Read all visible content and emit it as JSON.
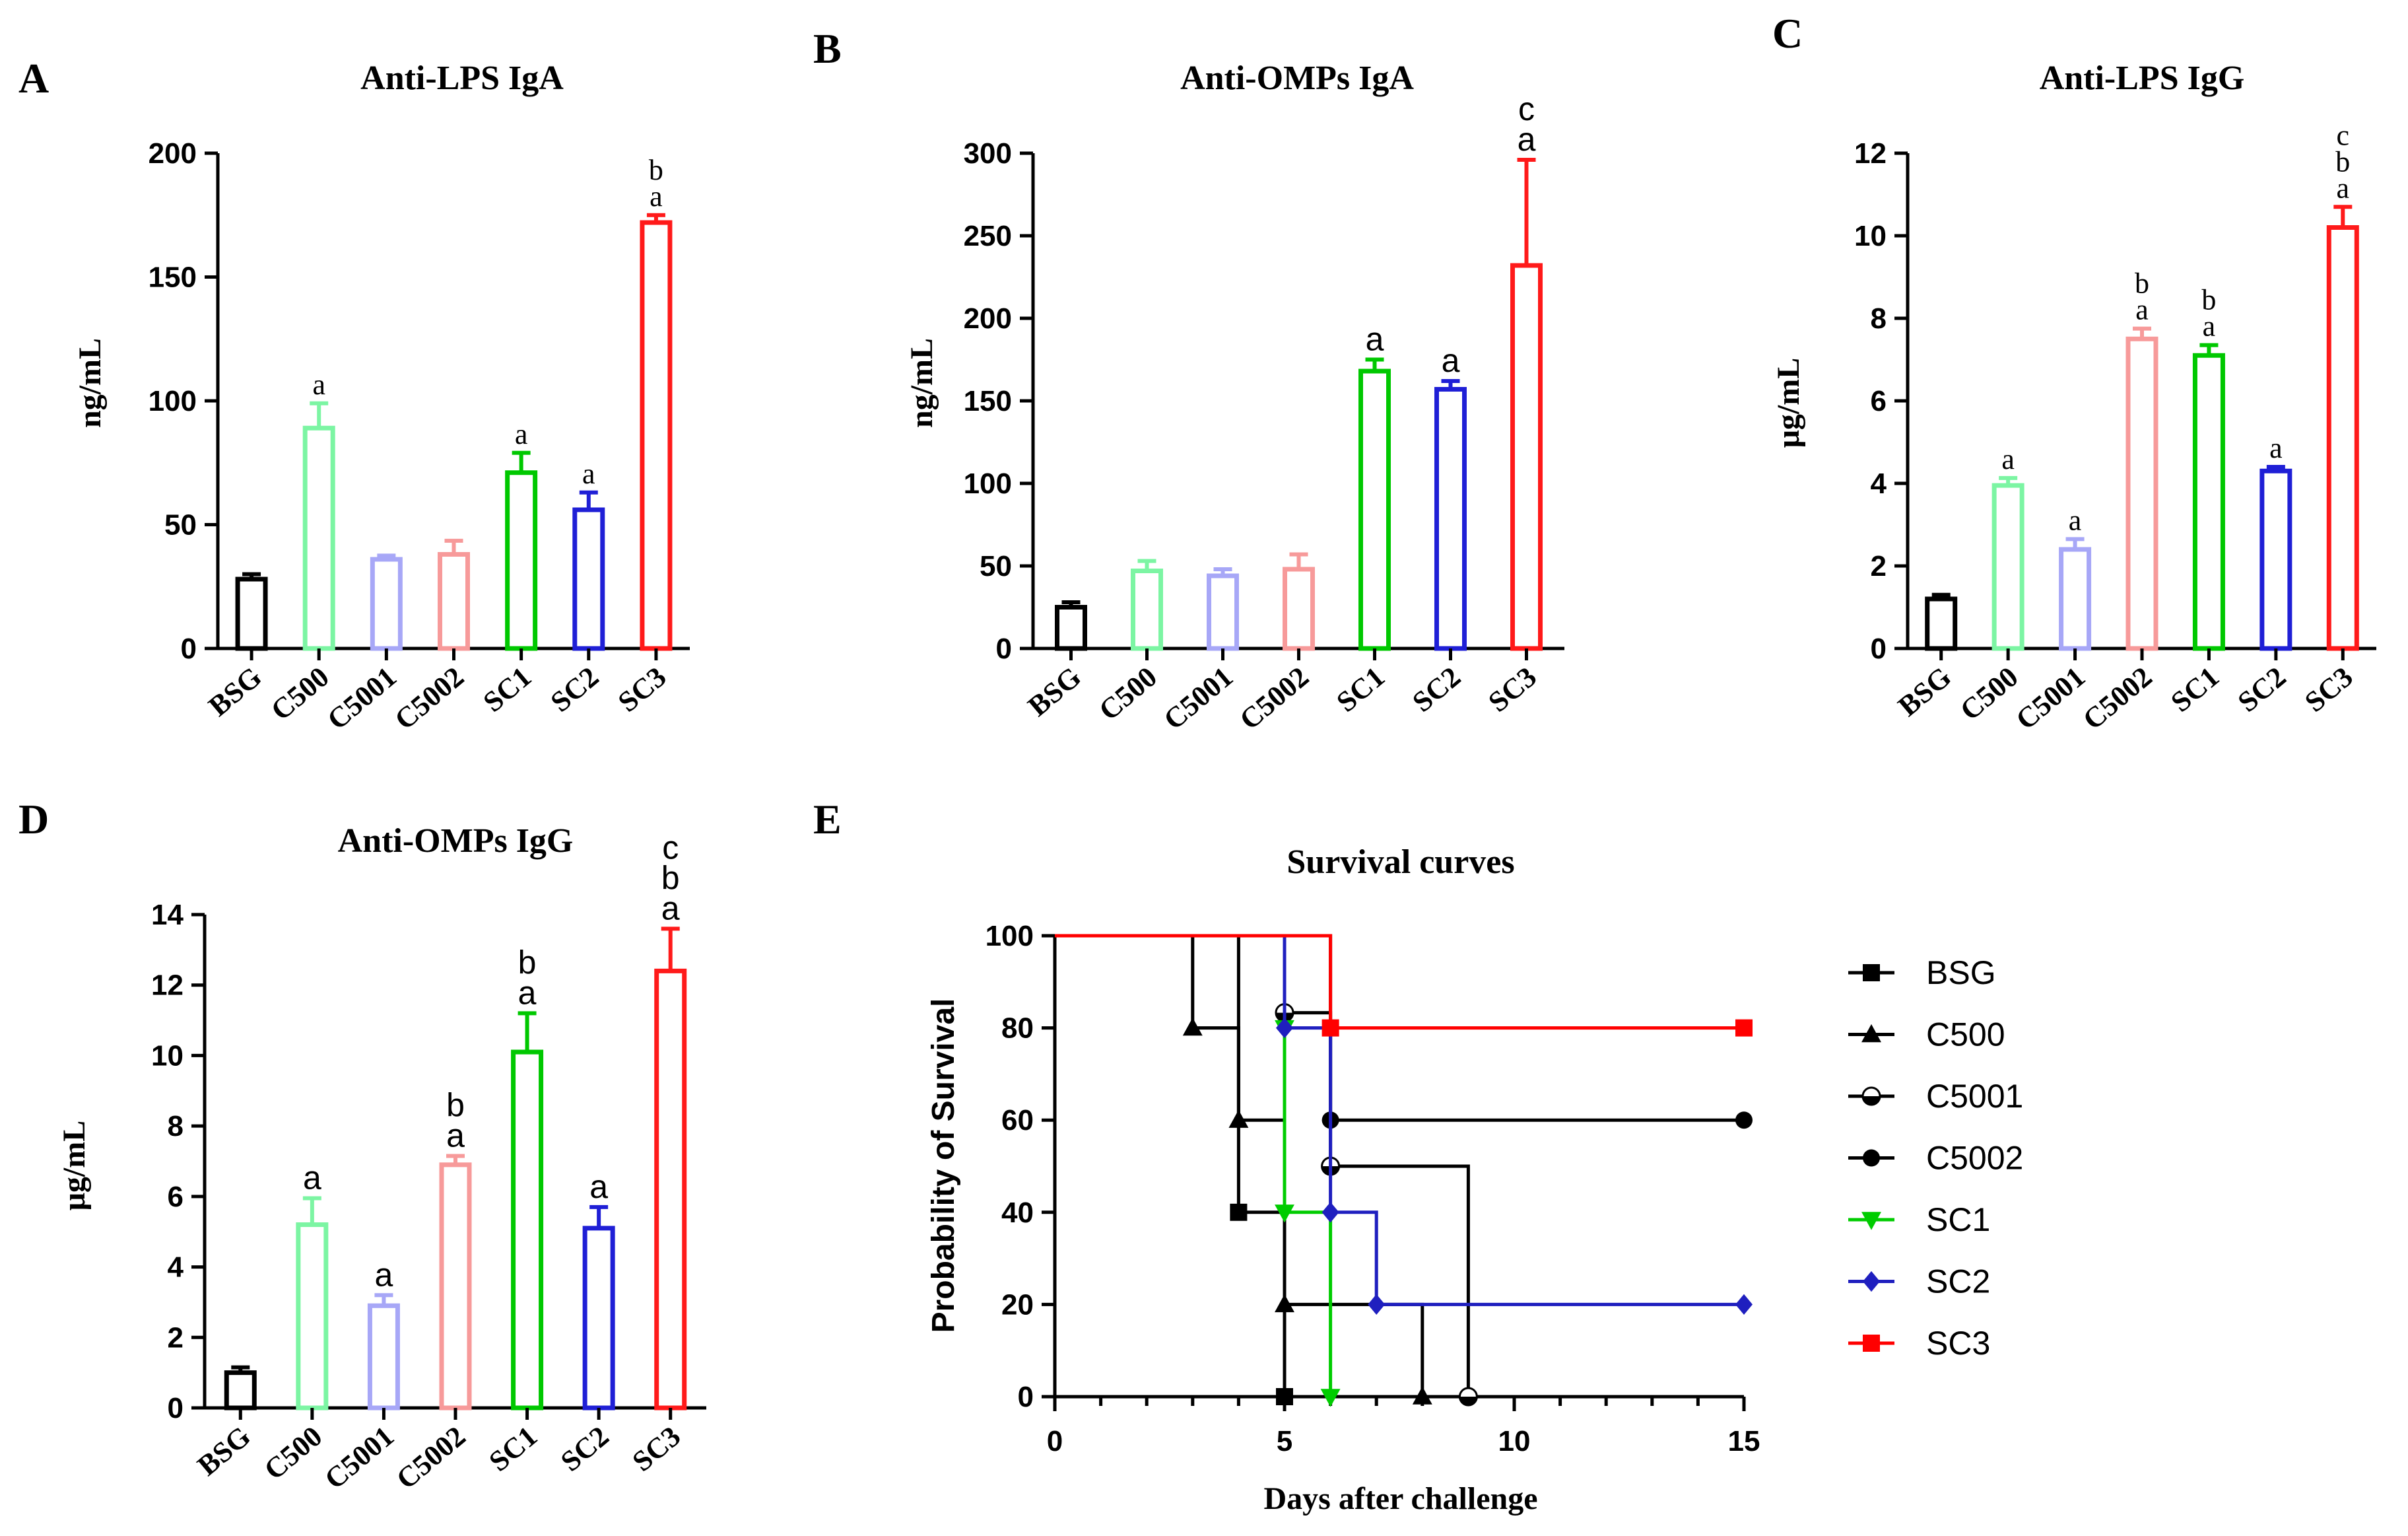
{
  "chart_data": [
    {
      "panel": "A",
      "type": "bar",
      "title": "Anti-LPS IgA",
      "ylabel": "ng/mL",
      "xlabel": "",
      "ylim": [
        0,
        200
      ],
      "yticks": [
        0,
        50,
        100,
        150,
        200
      ],
      "categories": [
        "BSG",
        "C500",
        "C5001",
        "C5002",
        "SC1",
        "SC2",
        "SC3"
      ],
      "values": [
        28,
        89,
        36,
        38,
        71,
        56,
        172
      ],
      "errors": [
        2,
        10,
        1.5,
        5.5,
        8,
        7,
        3
      ],
      "significance": [
        [],
        [
          "a"
        ],
        [],
        [],
        [
          "a"
        ],
        [
          "a"
        ],
        [
          "a",
          "b"
        ]
      ],
      "sig_font": "serif"
    },
    {
      "panel": "B",
      "type": "bar",
      "title": "Anti-OMPs IgA",
      "ylabel": "ng/mL",
      "xlabel": "",
      "ylim": [
        0,
        300
      ],
      "yticks": [
        0,
        50,
        100,
        150,
        200,
        250,
        300
      ],
      "categories": [
        "BSG",
        "C500",
        "C5001",
        "C5002",
        "SC1",
        "SC2",
        "SC3"
      ],
      "values": [
        25,
        47,
        44,
        48,
        168,
        157,
        232
      ],
      "errors": [
        3,
        6,
        4,
        9,
        7,
        5,
        64
      ],
      "significance": [
        [],
        [],
        [],
        [],
        [
          "a"
        ],
        [
          "a"
        ],
        [
          "a",
          "c"
        ]
      ],
      "sig_font": "sans"
    },
    {
      "panel": "C",
      "type": "bar",
      "title": "Anti-LPS IgG",
      "ylabel": "μg/mL",
      "xlabel": "",
      "ylim": [
        0,
        12
      ],
      "yticks": [
        0,
        2,
        4,
        6,
        8,
        10,
        12
      ],
      "categories": [
        "BSG",
        "C500",
        "C5001",
        "C5002",
        "SC1",
        "SC2",
        "SC3"
      ],
      "values": [
        1.2,
        3.95,
        2.4,
        7.5,
        7.1,
        4.3,
        10.2
      ],
      "errors": [
        0.1,
        0.18,
        0.25,
        0.25,
        0.25,
        0.1,
        0.5
      ],
      "significance": [
        [],
        [
          "a"
        ],
        [
          "a"
        ],
        [
          "a",
          "b"
        ],
        [
          "a",
          "b"
        ],
        [
          "a"
        ],
        [
          "a",
          "b",
          "c"
        ]
      ],
      "sig_font": "serif"
    },
    {
      "panel": "D",
      "type": "bar",
      "title": "Anti-OMPs IgG",
      "ylabel": "μg/mL",
      "xlabel": "",
      "ylim": [
        0,
        14
      ],
      "yticks": [
        0,
        2,
        4,
        6,
        8,
        10,
        12,
        14
      ],
      "categories": [
        "BSG",
        "C500",
        "C5001",
        "C5002",
        "SC1",
        "SC2",
        "SC3"
      ],
      "values": [
        1.0,
        5.2,
        2.9,
        6.9,
        10.1,
        5.1,
        12.4
      ],
      "errors": [
        0.15,
        0.75,
        0.3,
        0.25,
        1.1,
        0.6,
        1.2
      ],
      "significance": [
        [],
        [
          "a"
        ],
        [
          "a"
        ],
        [
          "a",
          "b"
        ],
        [
          "a",
          "b"
        ],
        [
          "a"
        ],
        [
          "a",
          "b",
          "c"
        ]
      ],
      "sig_font": "sans"
    },
    {
      "panel": "E",
      "type": "line",
      "title": "Survival curves",
      "xlabel": "Days after challenge",
      "ylabel": "Probability of Survival",
      "xlim": [
        0,
        15
      ],
      "ylim": [
        0,
        100
      ],
      "xticks": [
        0,
        5,
        10,
        15
      ],
      "yticks": [
        0,
        20,
        40,
        60,
        80,
        100
      ],
      "series": [
        {
          "name": "BSG",
          "marker": "square",
          "color": "#000000",
          "steps": [
            [
              0,
              100
            ],
            [
              4,
              40
            ],
            [
              5,
              0
            ]
          ],
          "markers": [
            [
              4,
              40
            ],
            [
              5,
              0
            ]
          ]
        },
        {
          "name": "C500",
          "marker": "triangle-up",
          "color": "#000000",
          "steps": [
            [
              0,
              100
            ],
            [
              3,
              80
            ],
            [
              4,
              60
            ],
            [
              5,
              20
            ],
            [
              8,
              0
            ]
          ],
          "markers": [
            [
              3,
              80
            ],
            [
              4,
              60
            ],
            [
              5,
              20
            ],
            [
              8,
              0
            ]
          ]
        },
        {
          "name": "C5001",
          "marker": "circle-half",
          "color": "#000000",
          "steps": [
            [
              0,
              100
            ],
            [
              5,
              83.3
            ],
            [
              6,
              50
            ],
            [
              9,
              0
            ]
          ],
          "markers": [
            [
              5,
              83.3
            ],
            [
              6,
              50
            ],
            [
              9,
              0
            ]
          ]
        },
        {
          "name": "C5002",
          "marker": "circle",
          "color": "#000000",
          "steps": [
            [
              0,
              100
            ],
            [
              6,
              60
            ],
            [
              15,
              60
            ]
          ],
          "markers": [
            [
              6,
              60
            ],
            [
              15,
              60
            ]
          ]
        },
        {
          "name": "SC1",
          "marker": "triangle-down",
          "color": "#00cc00",
          "steps": [
            [
              0,
              100
            ],
            [
              5,
              80
            ],
            [
              5,
              40
            ],
            [
              6,
              0
            ]
          ],
          "markers": [
            [
              5,
              80
            ],
            [
              5,
              40
            ],
            [
              6,
              0
            ]
          ]
        },
        {
          "name": "SC2",
          "marker": "diamond",
          "color": "#1f1fbf",
          "steps": [
            [
              0,
              100
            ],
            [
              5,
              80
            ],
            [
              6,
              40
            ],
            [
              7,
              20
            ],
            [
              15,
              20
            ]
          ],
          "markers": [
            [
              5,
              80
            ],
            [
              6,
              40
            ],
            [
              7,
              20
            ],
            [
              15,
              20
            ]
          ]
        },
        {
          "name": "SC3",
          "marker": "square",
          "color": "#ff0000",
          "steps": [
            [
              0,
              100
            ],
            [
              6,
              80
            ],
            [
              15,
              80
            ]
          ],
          "markers": [
            [
              6,
              80
            ],
            [
              15,
              80
            ]
          ]
        }
      ]
    }
  ],
  "colors": {
    "BSG": "#000000",
    "C500": "#7cf5a3",
    "C5001": "#a7a7f7",
    "C5002": "#f79a9a",
    "SC1": "#00c800",
    "SC2": "#1f1fd6",
    "SC3": "#ff1a1a"
  }
}
